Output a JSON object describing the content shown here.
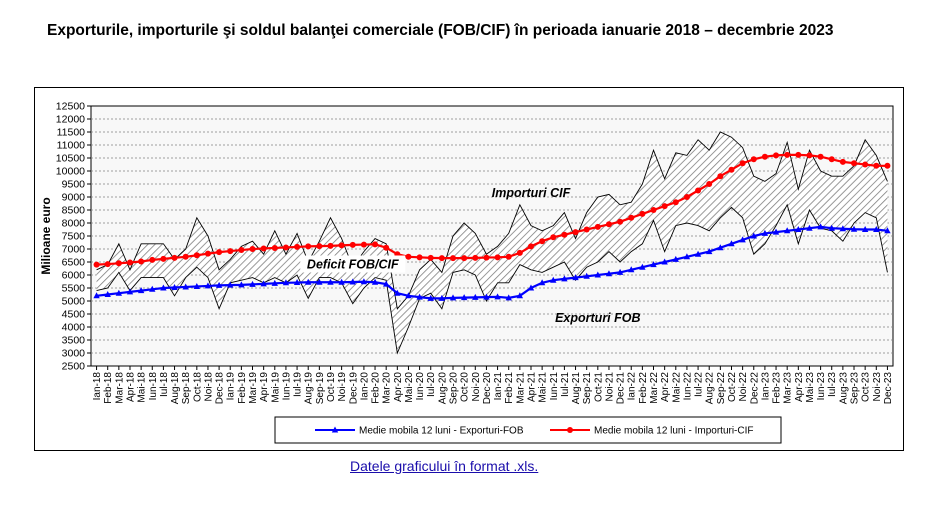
{
  "title": "Exporturile, importurile şi soldul balanţei comerciale (FOB/CIF) în perioada ianuarie 2018 – decembrie 2023",
  "link_text": "Datele graficului în format .xls.",
  "colors": {
    "exports": "#0000ff",
    "imports": "#ff0000",
    "hatch": "#7f7f7f",
    "grid": "#808080",
    "plot_bg": "#f8f8f8"
  },
  "chart_data": {
    "type": "line",
    "ylabel": "Milioane  euro",
    "ylim": [
      2500,
      12500
    ],
    "ystep": 500,
    "grid": true,
    "legend_position": "bottom",
    "categories": [
      "Ian-18",
      "Feb-18",
      "Mar-18",
      "Apr-18",
      "Mai-18",
      "Iun-18",
      "Iul-18",
      "Aug-18",
      "Sep-18",
      "Oct-18",
      "Noi-18",
      "Dec-18",
      "Ian-19",
      "Feb-19",
      "Mar-19",
      "Apr-19",
      "Mai-19",
      "Iun-19",
      "Iul-19",
      "Aug-19",
      "Sep-19",
      "Oct-19",
      "Noi-19",
      "Dec-19",
      "Ian-20",
      "Feb-20",
      "Mar-20",
      "Apr-20",
      "Mai-20",
      "Iun-20",
      "Iul-20",
      "Aug-20",
      "Sep-20",
      "Oct-20",
      "Noi-20",
      "Dec-20",
      "Ian-21",
      "Feb-21",
      "Mar-21",
      "Apr-21",
      "Mai-21",
      "Iun-21",
      "Iul-21",
      "Aug-21",
      "Sep-21",
      "Oct-21",
      "Noi-21",
      "Dec-21",
      "Ian-22",
      "Feb-22",
      "Mar-22",
      "Apr-22",
      "Mai-22",
      "Iun-22",
      "Iul-22",
      "Aug-22",
      "Sep-22",
      "Oct-22",
      "Noi-22",
      "Dec-22",
      "Ian-23",
      "Feb-23",
      "Mar-23",
      "Apr-23",
      "Mai-23",
      "Iun-23",
      "Iul-23",
      "Aug-23",
      "Sep-23",
      "Oct-23",
      "Noi-23",
      "Dec-23"
    ],
    "monthly_exports": [
      5400,
      5500,
      6100,
      5400,
      5900,
      5900,
      5900,
      5200,
      5900,
      6300,
      5900,
      4700,
      5700,
      5800,
      5900,
      5700,
      5900,
      5700,
      6000,
      5100,
      5900,
      5900,
      5700,
      4900,
      5500,
      5900,
      5800,
      3000,
      4000,
      5100,
      5300,
      4700,
      6100,
      6200,
      6000,
      5000,
      5700,
      5700,
      6400,
      6200,
      6100,
      6300,
      6500,
      5800,
      6300,
      6500,
      6900,
      6500,
      6900,
      7200,
      8100,
      6900,
      7900,
      8000,
      7900,
      7700,
      8200,
      8600,
      8200,
      6800,
      7200,
      7900,
      8700,
      7200,
      8500,
      7800,
      7700,
      7300,
      8000,
      8400,
      8200,
      6100
    ],
    "monthly_imports": [
      6200,
      6400,
      7200,
      6200,
      7200,
      7200,
      7200,
      6600,
      7000,
      8200,
      7500,
      6200,
      6600,
      7100,
      7300,
      6800,
      7700,
      6800,
      7600,
      6500,
      7300,
      8200,
      7400,
      6300,
      6900,
      7400,
      7200,
      4700,
      5200,
      6200,
      6600,
      6100,
      7500,
      8000,
      7600,
      6800,
      7100,
      7600,
      8700,
      7900,
      7700,
      7900,
      8400,
      7400,
      8400,
      9000,
      9100,
      8700,
      8800,
      9500,
      10800,
      9700,
      10700,
      10600,
      11200,
      10800,
      11500,
      11300,
      10900,
      9800,
      9600,
      9900,
      11100,
      9300,
      10800,
      10000,
      9800,
      9800,
      10200,
      11200,
      10600,
      9600
    ],
    "series": [
      {
        "name": "Medie mobila 12 luni - Exporturi-FOB",
        "color": "#0000ff",
        "marker": "triangle",
        "values": [
          5200,
          5250,
          5300,
          5350,
          5400,
          5450,
          5500,
          5520,
          5540,
          5560,
          5580,
          5600,
          5610,
          5620,
          5640,
          5660,
          5680,
          5700,
          5710,
          5720,
          5720,
          5720,
          5720,
          5730,
          5740,
          5720,
          5650,
          5300,
          5200,
          5150,
          5100,
          5100,
          5120,
          5130,
          5140,
          5150,
          5160,
          5120,
          5200,
          5500,
          5700,
          5800,
          5850,
          5900,
          5950,
          6000,
          6050,
          6100,
          6200,
          6300,
          6400,
          6500,
          6600,
          6700,
          6800,
          6900,
          7050,
          7200,
          7350,
          7500,
          7600,
          7650,
          7700,
          7750,
          7800,
          7850,
          7800,
          7780,
          7760,
          7750,
          7750,
          7700
        ]
      },
      {
        "name": "Medie mobila 12 luni - Importuri-CIF",
        "color": "#ff0000",
        "marker": "circle",
        "values": [
          6400,
          6420,
          6450,
          6480,
          6520,
          6580,
          6620,
          6660,
          6700,
          6760,
          6820,
          6880,
          6920,
          6960,
          7000,
          7020,
          7040,
          7060,
          7080,
          7100,
          7110,
          7120,
          7140,
          7160,
          7170,
          7180,
          7050,
          6800,
          6700,
          6680,
          6660,
          6650,
          6650,
          6650,
          6660,
          6670,
          6680,
          6700,
          6850,
          7100,
          7300,
          7450,
          7550,
          7650,
          7750,
          7850,
          7950,
          8050,
          8200,
          8350,
          8500,
          8650,
          8800,
          9000,
          9250,
          9500,
          9800,
          10050,
          10300,
          10450,
          10550,
          10600,
          10620,
          10620,
          10600,
          10550,
          10450,
          10350,
          10300,
          10250,
          10200,
          10200
        ]
      }
    ],
    "annotations": [
      "Importuri CIF",
      "Deficit FOB/CIF",
      "Exporturi FOB"
    ]
  }
}
